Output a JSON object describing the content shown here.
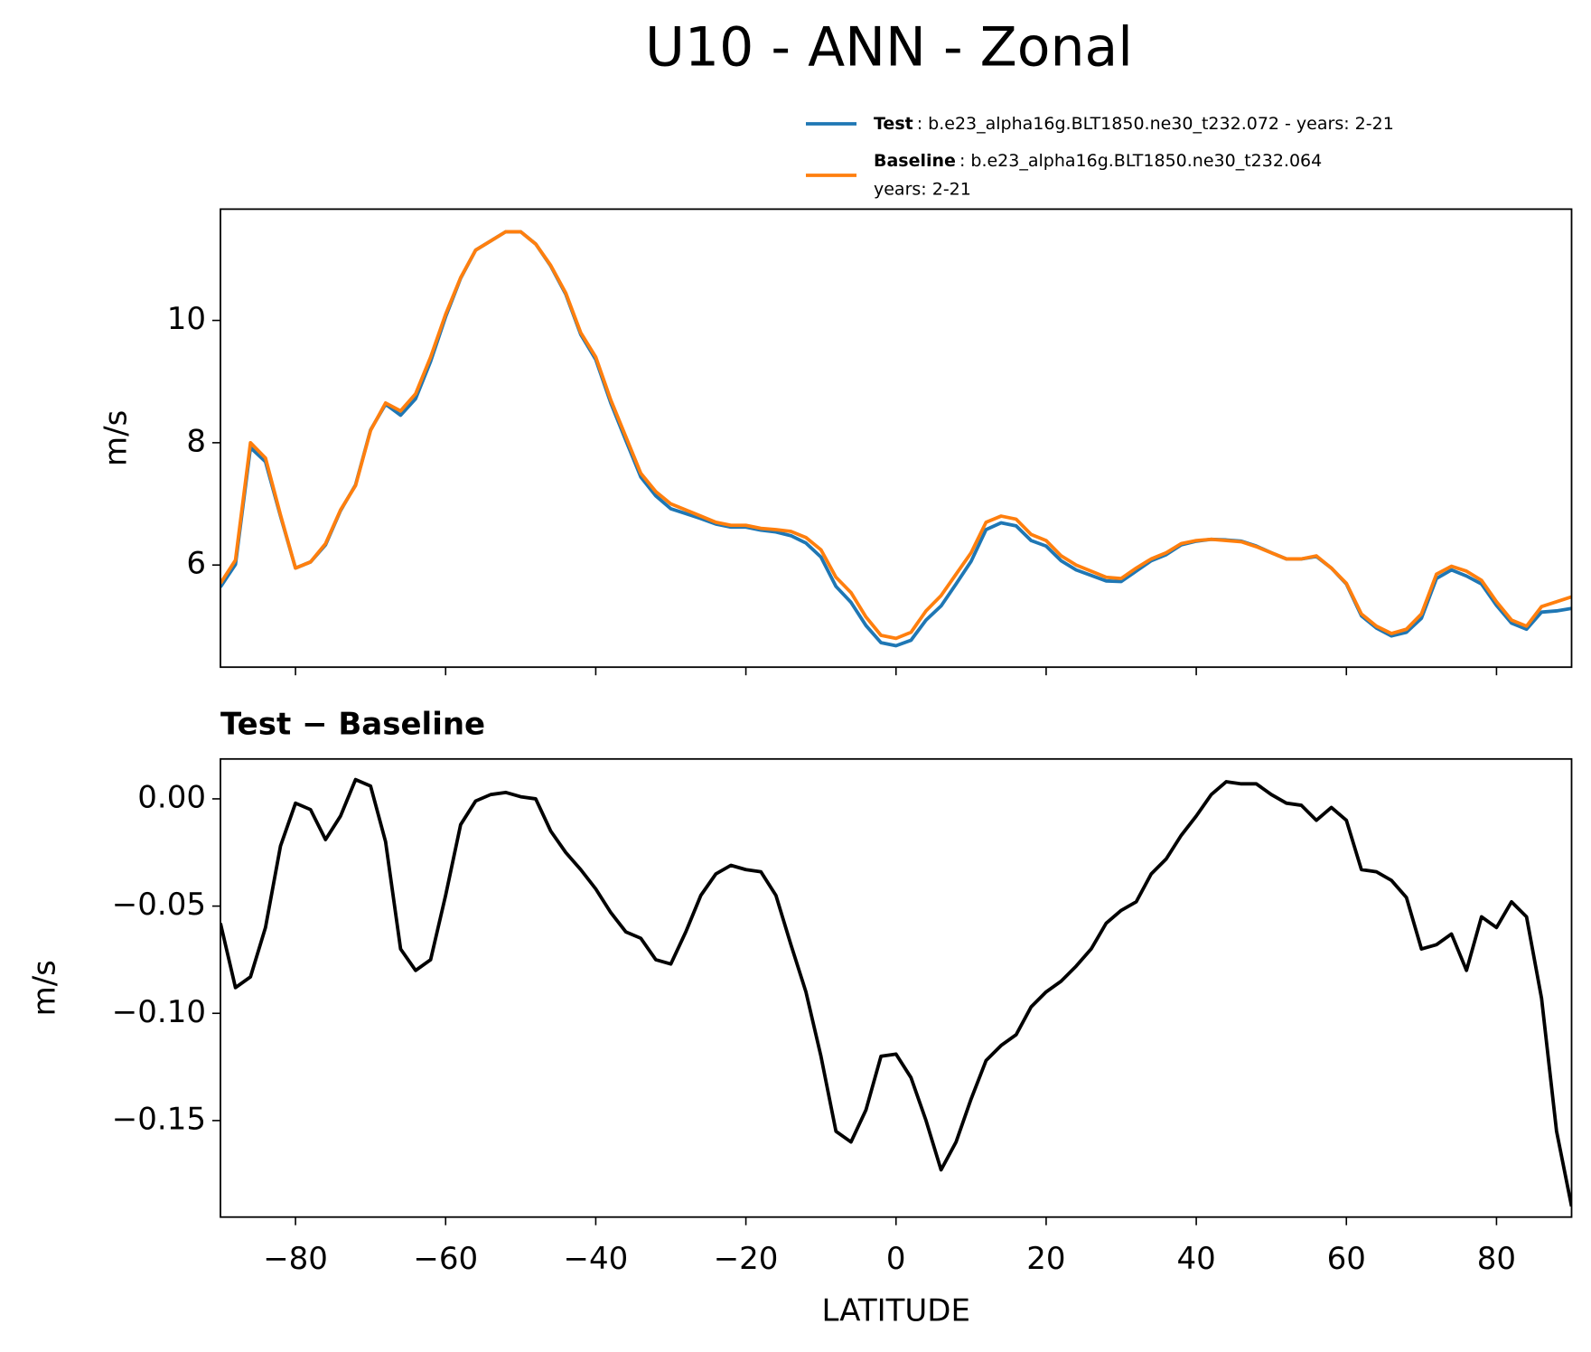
{
  "title": "U10 - ANN - Zonal",
  "chart_data": [
    {
      "type": "line",
      "ylabel": "m/s",
      "x": [
        -90,
        -88,
        -86,
        -84,
        -82,
        -80,
        -78,
        -76,
        -74,
        -72,
        -70,
        -68,
        -66,
        -64,
        -62,
        -60,
        -58,
        -56,
        -54,
        -52,
        -50,
        -48,
        -46,
        -44,
        -42,
        -40,
        -38,
        -36,
        -34,
        -32,
        -30,
        -28,
        -26,
        -24,
        -22,
        -20,
        -18,
        -16,
        -14,
        -12,
        -10,
        -8,
        -6,
        -4,
        -2,
        0,
        2,
        4,
        6,
        8,
        10,
        12,
        14,
        16,
        18,
        20,
        22,
        24,
        26,
        28,
        30,
        32,
        34,
        36,
        38,
        40,
        42,
        44,
        46,
        48,
        50,
        52,
        54,
        56,
        58,
        60,
        62,
        64,
        66,
        68,
        70,
        72,
        74,
        76,
        78,
        80,
        82,
        84,
        86,
        88,
        90
      ],
      "series": [
        {
          "name": "Test",
          "label_lines": [
            ": b.e23_alpha16g.BLT1850.ne30_t232.072 - years: 2-21"
          ],
          "color": "#1f77b4",
          "values": [
            5.64,
            6.01,
            7.92,
            7.69,
            6.8,
            5.95,
            6.05,
            6.33,
            6.89,
            7.31,
            8.21,
            8.63,
            8.45,
            8.72,
            9.33,
            10.06,
            10.69,
            11.15,
            11.3,
            11.45,
            11.45,
            11.25,
            10.89,
            10.43,
            9.77,
            9.36,
            8.65,
            8.04,
            7.44,
            7.13,
            6.92,
            6.84,
            6.76,
            6.67,
            6.62,
            6.62,
            6.57,
            6.54,
            6.48,
            6.36,
            6.13,
            5.65,
            5.39,
            5.01,
            4.73,
            4.68,
            4.77,
            5.1,
            5.33,
            5.69,
            6.06,
            6.58,
            6.69,
            6.64,
            6.4,
            6.31,
            6.07,
            5.92,
            5.83,
            5.74,
            5.73,
            5.9,
            6.07,
            6.17,
            6.33,
            6.39,
            6.42,
            6.41,
            6.39,
            6.31,
            6.2,
            6.1,
            6.1,
            6.14,
            5.95,
            5.69,
            5.17,
            4.97,
            4.84,
            4.9,
            5.13,
            5.78,
            5.92,
            5.82,
            5.69,
            5.34,
            5.05,
            4.95,
            5.23,
            5.25,
            5.29
          ]
        },
        {
          "name": "Baseline",
          "label_lines": [
            ": b.e23_alpha16g.BLT1850.ne30_t232.064",
            "years: 2-21"
          ],
          "color": "#ff7f0e",
          "values": [
            5.7,
            6.08,
            8.0,
            7.75,
            6.82,
            5.95,
            6.05,
            6.35,
            6.9,
            7.3,
            8.2,
            8.65,
            8.52,
            8.8,
            9.4,
            10.1,
            10.7,
            11.15,
            11.3,
            11.45,
            11.45,
            11.25,
            10.9,
            10.45,
            9.8,
            9.4,
            8.7,
            8.1,
            7.5,
            7.2,
            7.0,
            6.9,
            6.8,
            6.7,
            6.65,
            6.65,
            6.6,
            6.58,
            6.55,
            6.45,
            6.25,
            5.8,
            5.55,
            5.15,
            4.85,
            4.8,
            4.9,
            5.25,
            5.5,
            5.85,
            6.2,
            6.7,
            6.8,
            6.75,
            6.5,
            6.4,
            6.15,
            6.0,
            5.9,
            5.8,
            5.78,
            5.95,
            6.1,
            6.2,
            6.35,
            6.4,
            6.42,
            6.4,
            6.38,
            6.3,
            6.2,
            6.1,
            6.1,
            6.15,
            5.95,
            5.7,
            5.2,
            5.0,
            4.88,
            4.95,
            5.2,
            5.85,
            5.98,
            5.9,
            5.75,
            5.4,
            5.1,
            5.0,
            5.32,
            5.4,
            5.48
          ]
        }
      ],
      "xlim": [
        -90,
        90
      ],
      "xticks": [
        -80,
        -60,
        -40,
        -20,
        0,
        20,
        40,
        60,
        80
      ],
      "ylim": [
        4.33,
        11.82
      ],
      "yticks": [
        6,
        8,
        10
      ]
    },
    {
      "type": "line",
      "title": "Test − Baseline",
      "xlabel": "LATITUDE",
      "ylabel": "m/s",
      "x": [
        -90,
        -88,
        -86,
        -84,
        -82,
        -80,
        -78,
        -76,
        -74,
        -72,
        -70,
        -68,
        -66,
        -64,
        -62,
        -60,
        -58,
        -56,
        -54,
        -52,
        -50,
        -48,
        -46,
        -44,
        -42,
        -40,
        -38,
        -36,
        -34,
        -32,
        -30,
        -28,
        -26,
        -24,
        -22,
        -20,
        -18,
        -16,
        -14,
        -12,
        -10,
        -8,
        -6,
        -4,
        -2,
        0,
        2,
        4,
        6,
        8,
        10,
        12,
        14,
        16,
        18,
        20,
        22,
        24,
        26,
        28,
        30,
        32,
        34,
        36,
        38,
        40,
        42,
        44,
        46,
        48,
        50,
        52,
        54,
        56,
        58,
        60,
        62,
        64,
        66,
        68,
        70,
        72,
        74,
        76,
        78,
        80,
        82,
        84,
        86,
        88,
        90
      ],
      "series": [
        {
          "color": "#000000",
          "values": [
            -0.058,
            -0.088,
            -0.083,
            -0.06,
            -0.022,
            -0.002,
            -0.005,
            -0.019,
            -0.008,
            0.009,
            0.006,
            -0.02,
            -0.07,
            -0.08,
            -0.075,
            -0.045,
            -0.012,
            -0.001,
            0.002,
            0.003,
            0.001,
            0.0,
            -0.015,
            -0.025,
            -0.033,
            -0.042,
            -0.053,
            -0.062,
            -0.065,
            -0.075,
            -0.077,
            -0.062,
            -0.045,
            -0.035,
            -0.031,
            -0.033,
            -0.034,
            -0.045,
            -0.068,
            -0.09,
            -0.12,
            -0.155,
            -0.16,
            -0.145,
            -0.12,
            -0.119,
            -0.13,
            -0.15,
            -0.173,
            -0.16,
            -0.14,
            -0.122,
            -0.115,
            -0.11,
            -0.097,
            -0.09,
            -0.085,
            -0.078,
            -0.07,
            -0.058,
            -0.052,
            -0.048,
            -0.035,
            -0.028,
            -0.017,
            -0.008,
            0.002,
            0.008,
            0.007,
            0.007,
            0.002,
            -0.002,
            -0.003,
            -0.01,
            -0.004,
            -0.01,
            -0.033,
            -0.034,
            -0.038,
            -0.046,
            -0.07,
            -0.068,
            -0.063,
            -0.08,
            -0.055,
            -0.06,
            -0.048,
            -0.055,
            -0.093,
            -0.155,
            -0.19
          ]
        }
      ],
      "xlim": [
        -90,
        90
      ],
      "xticks": [
        {
          "value": -80,
          "label": "−80"
        },
        {
          "value": -60,
          "label": "−60"
        },
        {
          "value": -40,
          "label": "−40"
        },
        {
          "value": -20,
          "label": "−20"
        },
        0,
        20,
        40,
        60,
        80
      ],
      "ylim": [
        -0.195,
        0.0186
      ],
      "yticks": [
        {
          "value": 0,
          "label": "0.00"
        },
        {
          "value": -0.05,
          "label": "−0.05"
        },
        {
          "value": -0.1,
          "label": "−0.10"
        },
        {
          "value": -0.15,
          "label": "−0.15"
        }
      ]
    }
  ]
}
